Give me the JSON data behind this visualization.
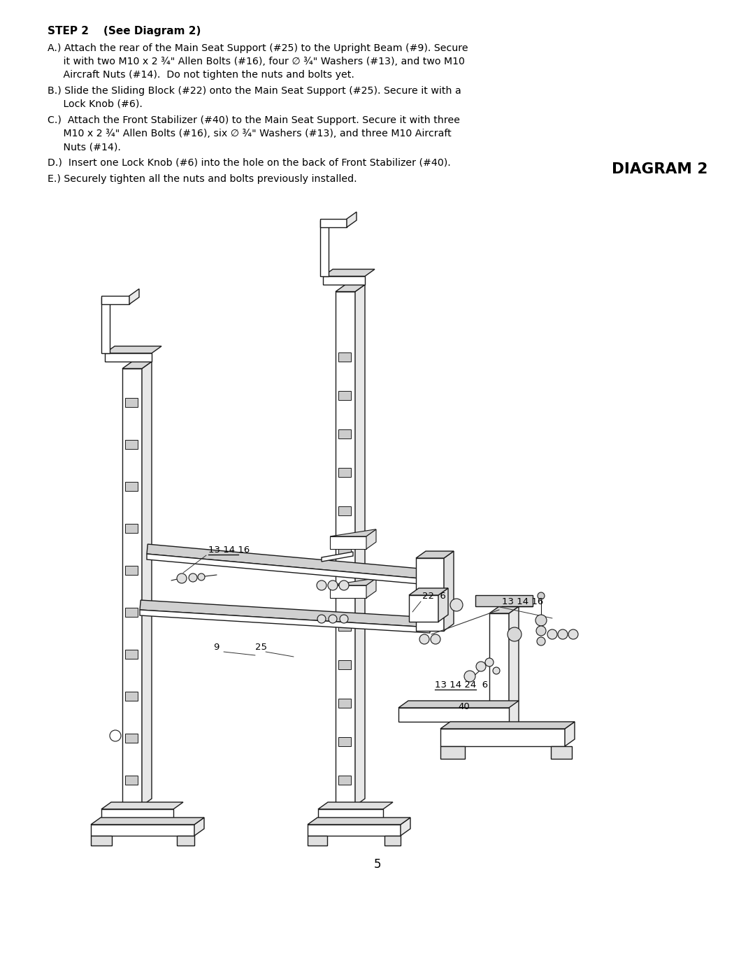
{
  "background_color": "#ffffff",
  "page_number": "5",
  "step_title": "STEP 2    (See Diagram 2)",
  "diagram_title": "DIAGRAM 2",
  "line_color": "#1a1a1a",
  "lw": 1.0,
  "text_blocks": [
    {
      "lines": [
        "A.) Attach the rear of the Main Seat Support (#25) to the Upright Beam (#9). Secure",
        "     it with two M10 x 2 ¾\" Allen Bolts (#16), four ∅ ¾\" Washers (#13), and two M10",
        "     Aircraft Nuts (#14).  Do not tighten the nuts and bolts yet."
      ]
    },
    {
      "lines": [
        "B.) Slide the Sliding Block (#22) onto the Main Seat Support (#25). Secure it with a",
        "     Lock Knob (#6)."
      ]
    },
    {
      "lines": [
        "C.)  Attach the Front Stabilizer (#40) to the Main Seat Support. Secure it with three",
        "     M10 x 2 ¾\" Allen Bolts (#16), six ∅ ¾\" Washers (#13), and three M10 Aircraft",
        "     Nuts (#14)."
      ]
    },
    {
      "lines": [
        "D.)  Insert one Lock Knob (#6) into the hole on the back of Front Stabilizer (#40)."
      ]
    },
    {
      "lines": [
        "E.) Securely tighten all the nuts and bolts previously installed."
      ]
    }
  ]
}
